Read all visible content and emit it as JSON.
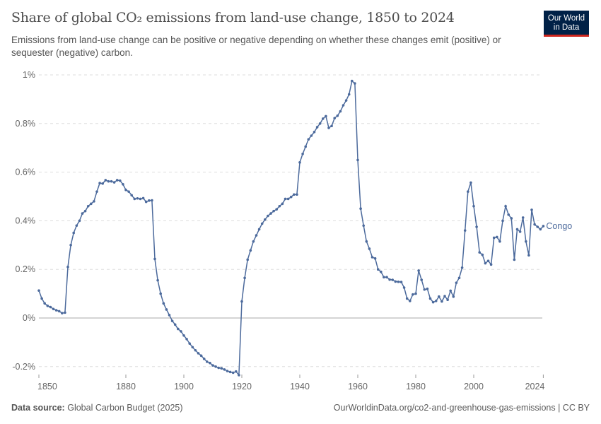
{
  "header": {
    "title": "Share of global CO₂ emissions from land-use change, 1850 to 2024",
    "subtitle": "Emissions from land-use change can be positive or negative depending on whether these changes emit (positive) or sequester (negative) carbon.",
    "logo_text": "Our World in Data"
  },
  "footer": {
    "source_label": "Data source:",
    "source": "Global Carbon Budget (2025)",
    "url": "OurWorldinData.org/co2-and-greenhouse-gas-emissions | CC BY"
  },
  "colors": {
    "series": "#4c6a9c",
    "logo_bg": "#002147",
    "logo_accent": "#ce261e"
  },
  "chart_data": {
    "type": "line",
    "title": "Share of global CO₂ emissions from land-use change, 1850 to 2024",
    "xlim": [
      1850,
      2024
    ],
    "ylim": [
      -0.24,
      1.0
    ],
    "grid": true,
    "legend": "right end-of-line label",
    "x_ticks": [
      {
        "v": 1850,
        "label": "1850"
      },
      {
        "v": 1880,
        "label": "1880"
      },
      {
        "v": 1900,
        "label": "1900"
      },
      {
        "v": 1920,
        "label": "1920"
      },
      {
        "v": 1940,
        "label": "1940"
      },
      {
        "v": 1960,
        "label": "1960"
      },
      {
        "v": 1980,
        "label": "1980"
      },
      {
        "v": 2000,
        "label": "2000"
      },
      {
        "v": 2024,
        "label": "2024"
      }
    ],
    "y_ticks": [
      {
        "v": 1.0,
        "label": "1%"
      },
      {
        "v": 0.8,
        "label": "0.8%"
      },
      {
        "v": 0.6,
        "label": "0.6%"
      },
      {
        "v": 0.4,
        "label": "0.4%"
      },
      {
        "v": 0.2,
        "label": "0.2%"
      },
      {
        "v": 0,
        "label": "0%"
      },
      {
        "v": -0.2,
        "label": "-0.2%"
      }
    ],
    "series": [
      {
        "name": "Congo",
        "x_start": 1850,
        "values": [
          0.113,
          0.08,
          0.06,
          0.05,
          0.045,
          0.037,
          0.032,
          0.028,
          0.02,
          0.022,
          0.21,
          0.3,
          0.35,
          0.38,
          0.4,
          0.43,
          0.44,
          0.46,
          0.47,
          0.48,
          0.52,
          0.555,
          0.553,
          0.567,
          0.562,
          0.562,
          0.558,
          0.567,
          0.565,
          0.55,
          0.527,
          0.52,
          0.505,
          0.49,
          0.492,
          0.49,
          0.493,
          0.478,
          0.483,
          0.484,
          0.243,
          0.155,
          0.1,
          0.06,
          0.035,
          0.012,
          -0.012,
          -0.027,
          -0.045,
          -0.055,
          -0.072,
          -0.087,
          -0.105,
          -0.12,
          -0.133,
          -0.145,
          -0.155,
          -0.168,
          -0.18,
          -0.185,
          -0.195,
          -0.2,
          -0.205,
          -0.207,
          -0.212,
          -0.218,
          -0.222,
          -0.225,
          -0.22,
          -0.235,
          0.068,
          0.165,
          0.24,
          0.278,
          0.315,
          0.34,
          0.365,
          0.388,
          0.405,
          0.42,
          0.43,
          0.44,
          0.447,
          0.46,
          0.47,
          0.49,
          0.49,
          0.498,
          0.508,
          0.508,
          0.64,
          0.675,
          0.705,
          0.735,
          0.75,
          0.765,
          0.785,
          0.8,
          0.82,
          0.83,
          0.782,
          0.79,
          0.822,
          0.832,
          0.85,
          0.875,
          0.895,
          0.92,
          0.975,
          0.965,
          0.65,
          0.45,
          0.38,
          0.315,
          0.285,
          0.25,
          0.245,
          0.2,
          0.19,
          0.168,
          0.168,
          0.158,
          0.157,
          0.15,
          0.149,
          0.148,
          0.125,
          0.08,
          0.07,
          0.097,
          0.1,
          0.195,
          0.157,
          0.117,
          0.12,
          0.08,
          0.065,
          0.07,
          0.088,
          0.068,
          0.09,
          0.075,
          0.112,
          0.088,
          0.145,
          0.165,
          0.207,
          0.36,
          0.52,
          0.557,
          0.46,
          0.375,
          0.27,
          0.26,
          0.225,
          0.235,
          0.22,
          0.33,
          0.333,
          0.315,
          0.4,
          0.46,
          0.425,
          0.41,
          0.24,
          0.365,
          0.355,
          0.413,
          0.315,
          0.258,
          0.445,
          0.385,
          0.375,
          0.365,
          0.378
        ]
      }
    ]
  }
}
